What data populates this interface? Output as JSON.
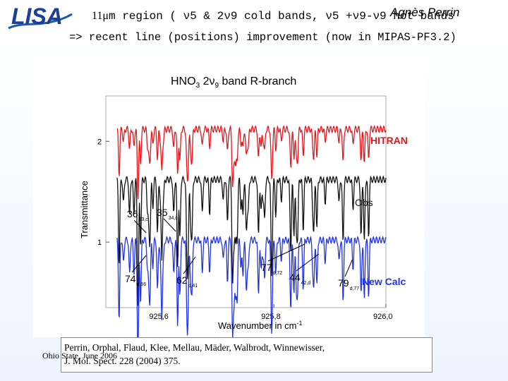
{
  "header": {
    "logo_text": "LISA",
    "author": "Agnès Perrin",
    "line1_num": "11",
    "line1_text": "m region ( ν5 & 2ν9 cold bands, ν5 +ν9-ν9 hot bands",
    "line2_text": "=> recent line (positions) improvement (now in MIPAS-PF3.2)"
  },
  "chart_data": {
    "type": "line",
    "title": "HNO3 2ν9 band R-branch",
    "xlabel": "Wavenumber in cm-1",
    "ylabel": "Transmittance",
    "xlim": [
      925.5,
      926.0
    ],
    "ylim": [
      0.35,
      2.45
    ],
    "x_ticks": [
      "925,6",
      "925,8",
      "926,0"
    ],
    "y_ticks": [
      "1",
      "2"
    ],
    "grid": false,
    "series": [
      {
        "name": "HITRAN",
        "color": "#e8141b",
        "baseline": 2.12,
        "depth": 0.5
      },
      {
        "name": "Obs",
        "color": "#111111",
        "baseline": 1.62,
        "depth": 0.65
      },
      {
        "name": "New Calc",
        "color": "#2233e0",
        "baseline": 1.02,
        "depth": 0.62
      }
    ],
    "annotations": [
      {
        "main": "36",
        "sub": "33,c",
        "x": 925.572
      },
      {
        "main": "35",
        "sub": "34,c",
        "x": 925.625
      },
      {
        "main": "74",
        "sub": "d,66",
        "x": 925.572
      },
      {
        "main": "62",
        "sub": "d,41",
        "x": 925.66
      },
      {
        "main": "77",
        "sub": "d,72",
        "x": 925.855
      },
      {
        "main": "44",
        "sub": "42,d",
        "x": 925.88
      },
      {
        "main": "79",
        "sub": "d,77",
        "x": 925.94
      }
    ]
  },
  "reference": {
    "line1": "Perrin, Orphal, Flaud, Klee, Mellau, Mäder, Walbrodt, Winnewisser,",
    "line2": "J. Mol. Spect. 228 (2004) 375."
  },
  "footer": "Ohio State, June 2006"
}
